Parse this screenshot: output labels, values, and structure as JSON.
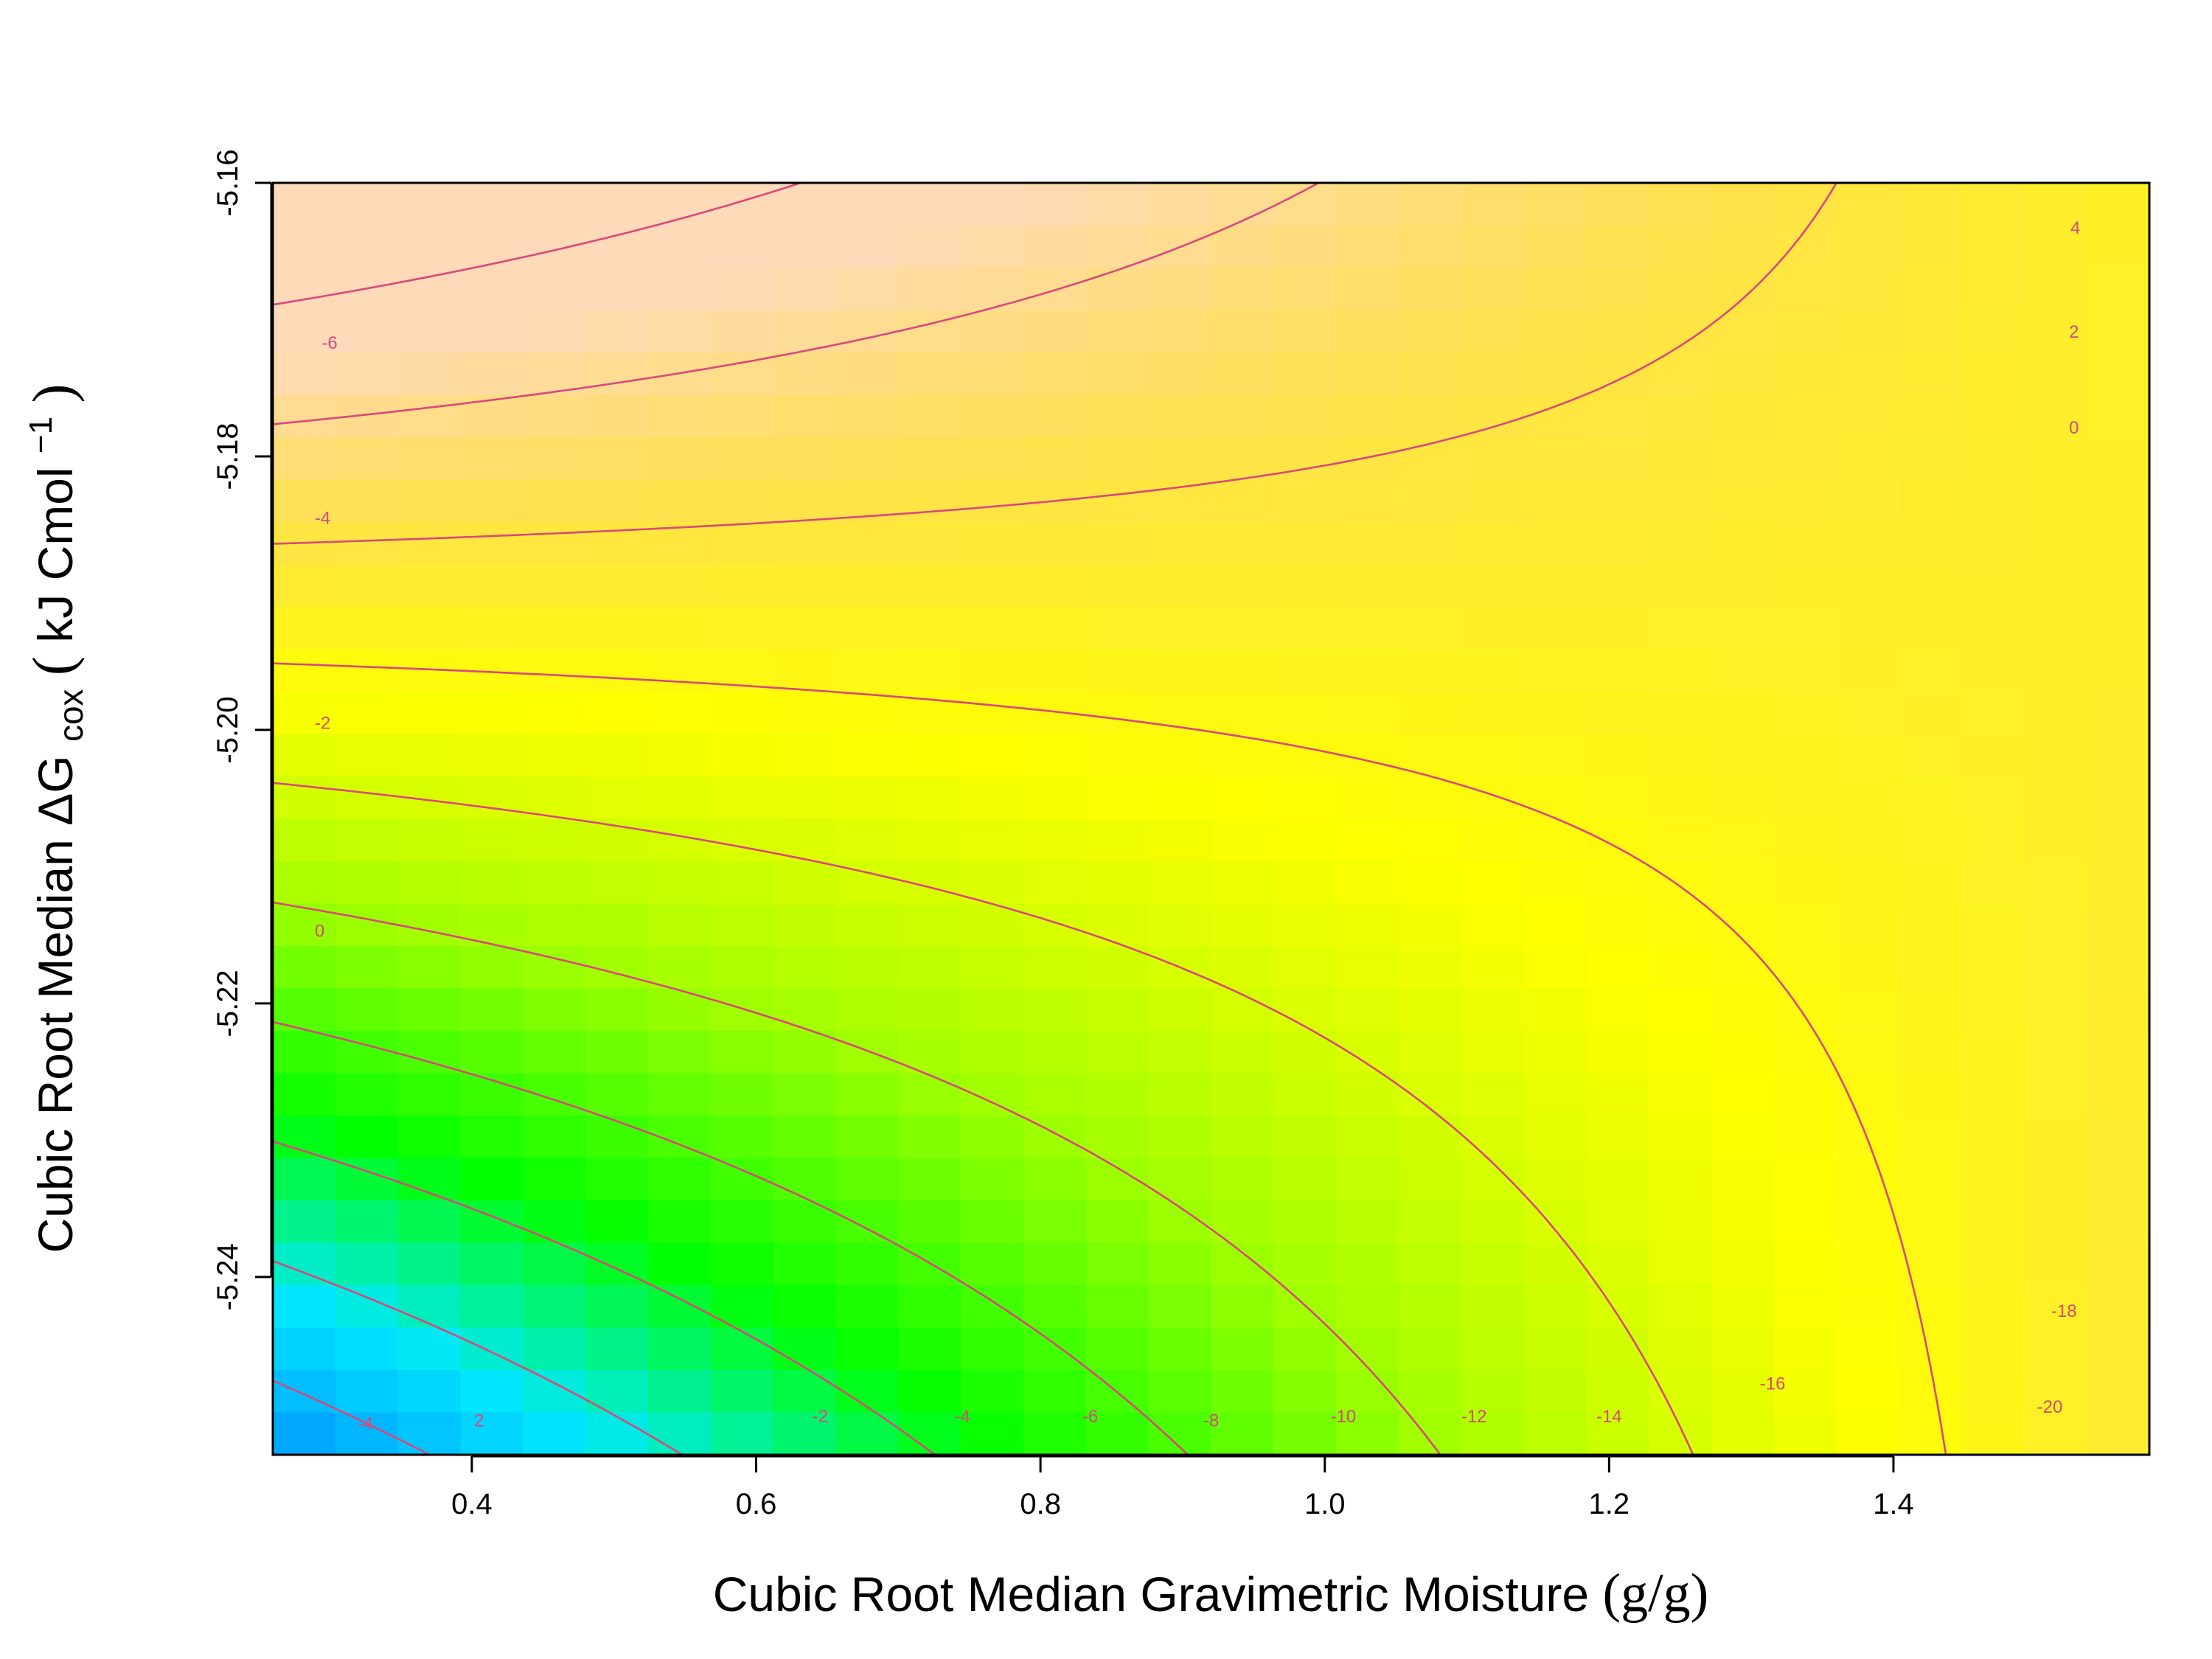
{
  "chart_data": {
    "type": "heatmap",
    "title": "",
    "xlabel": {
      "main": "Cubic Root Median Gravimetric Moisture",
      "unit": "(g/g)"
    },
    "ylabel": {
      "prefix": "Cubic Root Median ",
      "delta": "ΔG",
      "subscript": "cox",
      "unit_open": "(",
      "unit_text": "kJ Cmol",
      "unit_sup": "−1",
      "unit_close": ")"
    },
    "xlim": [
      0.26,
      1.58
    ],
    "ylim": [
      -5.253,
      -5.16
    ],
    "x_ticks": [
      0.4,
      0.6,
      0.8,
      1.0,
      1.2,
      1.4
    ],
    "x_tick_labels": [
      "0.4",
      "0.6",
      "0.8",
      "1.0",
      "1.2",
      "1.4"
    ],
    "y_ticks": [
      -5.16,
      -5.18,
      -5.2,
      -5.22,
      -5.24
    ],
    "y_tick_labels": [
      "-5.16",
      "-5.18",
      "-5.20",
      "-5.22",
      "-5.24"
    ],
    "grid": false,
    "legend": "none",
    "colormap": [
      "#ffdab8",
      "#ffe050",
      "#ffff00",
      "#a0ff00",
      "#00ff00",
      "#00e8ff",
      "#0090ff",
      "#0010ff",
      "#5000ff"
    ],
    "z_range": [
      -21,
      5
    ],
    "contour_levels": [
      4,
      2,
      0,
      -2,
      -4,
      -6,
      -8,
      -10,
      -12,
      -14,
      -16,
      -18,
      -20
    ],
    "contour_labels": [
      {
        "text": "-6",
        "x": 0.3,
        "y": -5.1717
      },
      {
        "text": "-4",
        "x": 0.295,
        "y": -5.1845
      },
      {
        "text": "-2",
        "x": 0.295,
        "y": -5.1995
      },
      {
        "text": "0",
        "x": 0.293,
        "y": -5.2147
      },
      {
        "text": "-4",
        "x": 0.325,
        "y": -5.2507
      },
      {
        "text": "2",
        "x": 0.405,
        "y": -5.2505
      },
      {
        "text": "-2",
        "x": 0.645,
        "y": -5.2502
      },
      {
        "text": "-4",
        "x": 0.745,
        "y": -5.2502
      },
      {
        "text": "-6",
        "x": 0.835,
        "y": -5.2502
      },
      {
        "text": "-8",
        "x": 0.92,
        "y": -5.2505
      },
      {
        "text": "-10",
        "x": 1.013,
        "y": -5.2502
      },
      {
        "text": "-12",
        "x": 1.105,
        "y": -5.2502
      },
      {
        "text": "-14",
        "x": 1.2,
        "y": -5.2502
      },
      {
        "text": "-16",
        "x": 1.315,
        "y": -5.2478
      },
      {
        "text": "-18",
        "x": 1.52,
        "y": -5.2425
      },
      {
        "text": "-20",
        "x": 1.51,
        "y": -5.2495
      },
      {
        "text": "4",
        "x": 1.528,
        "y": -5.1633
      },
      {
        "text": "2",
        "x": 1.527,
        "y": -5.1709
      },
      {
        "text": "0",
        "x": 1.527,
        "y": -5.1779
      }
    ]
  }
}
